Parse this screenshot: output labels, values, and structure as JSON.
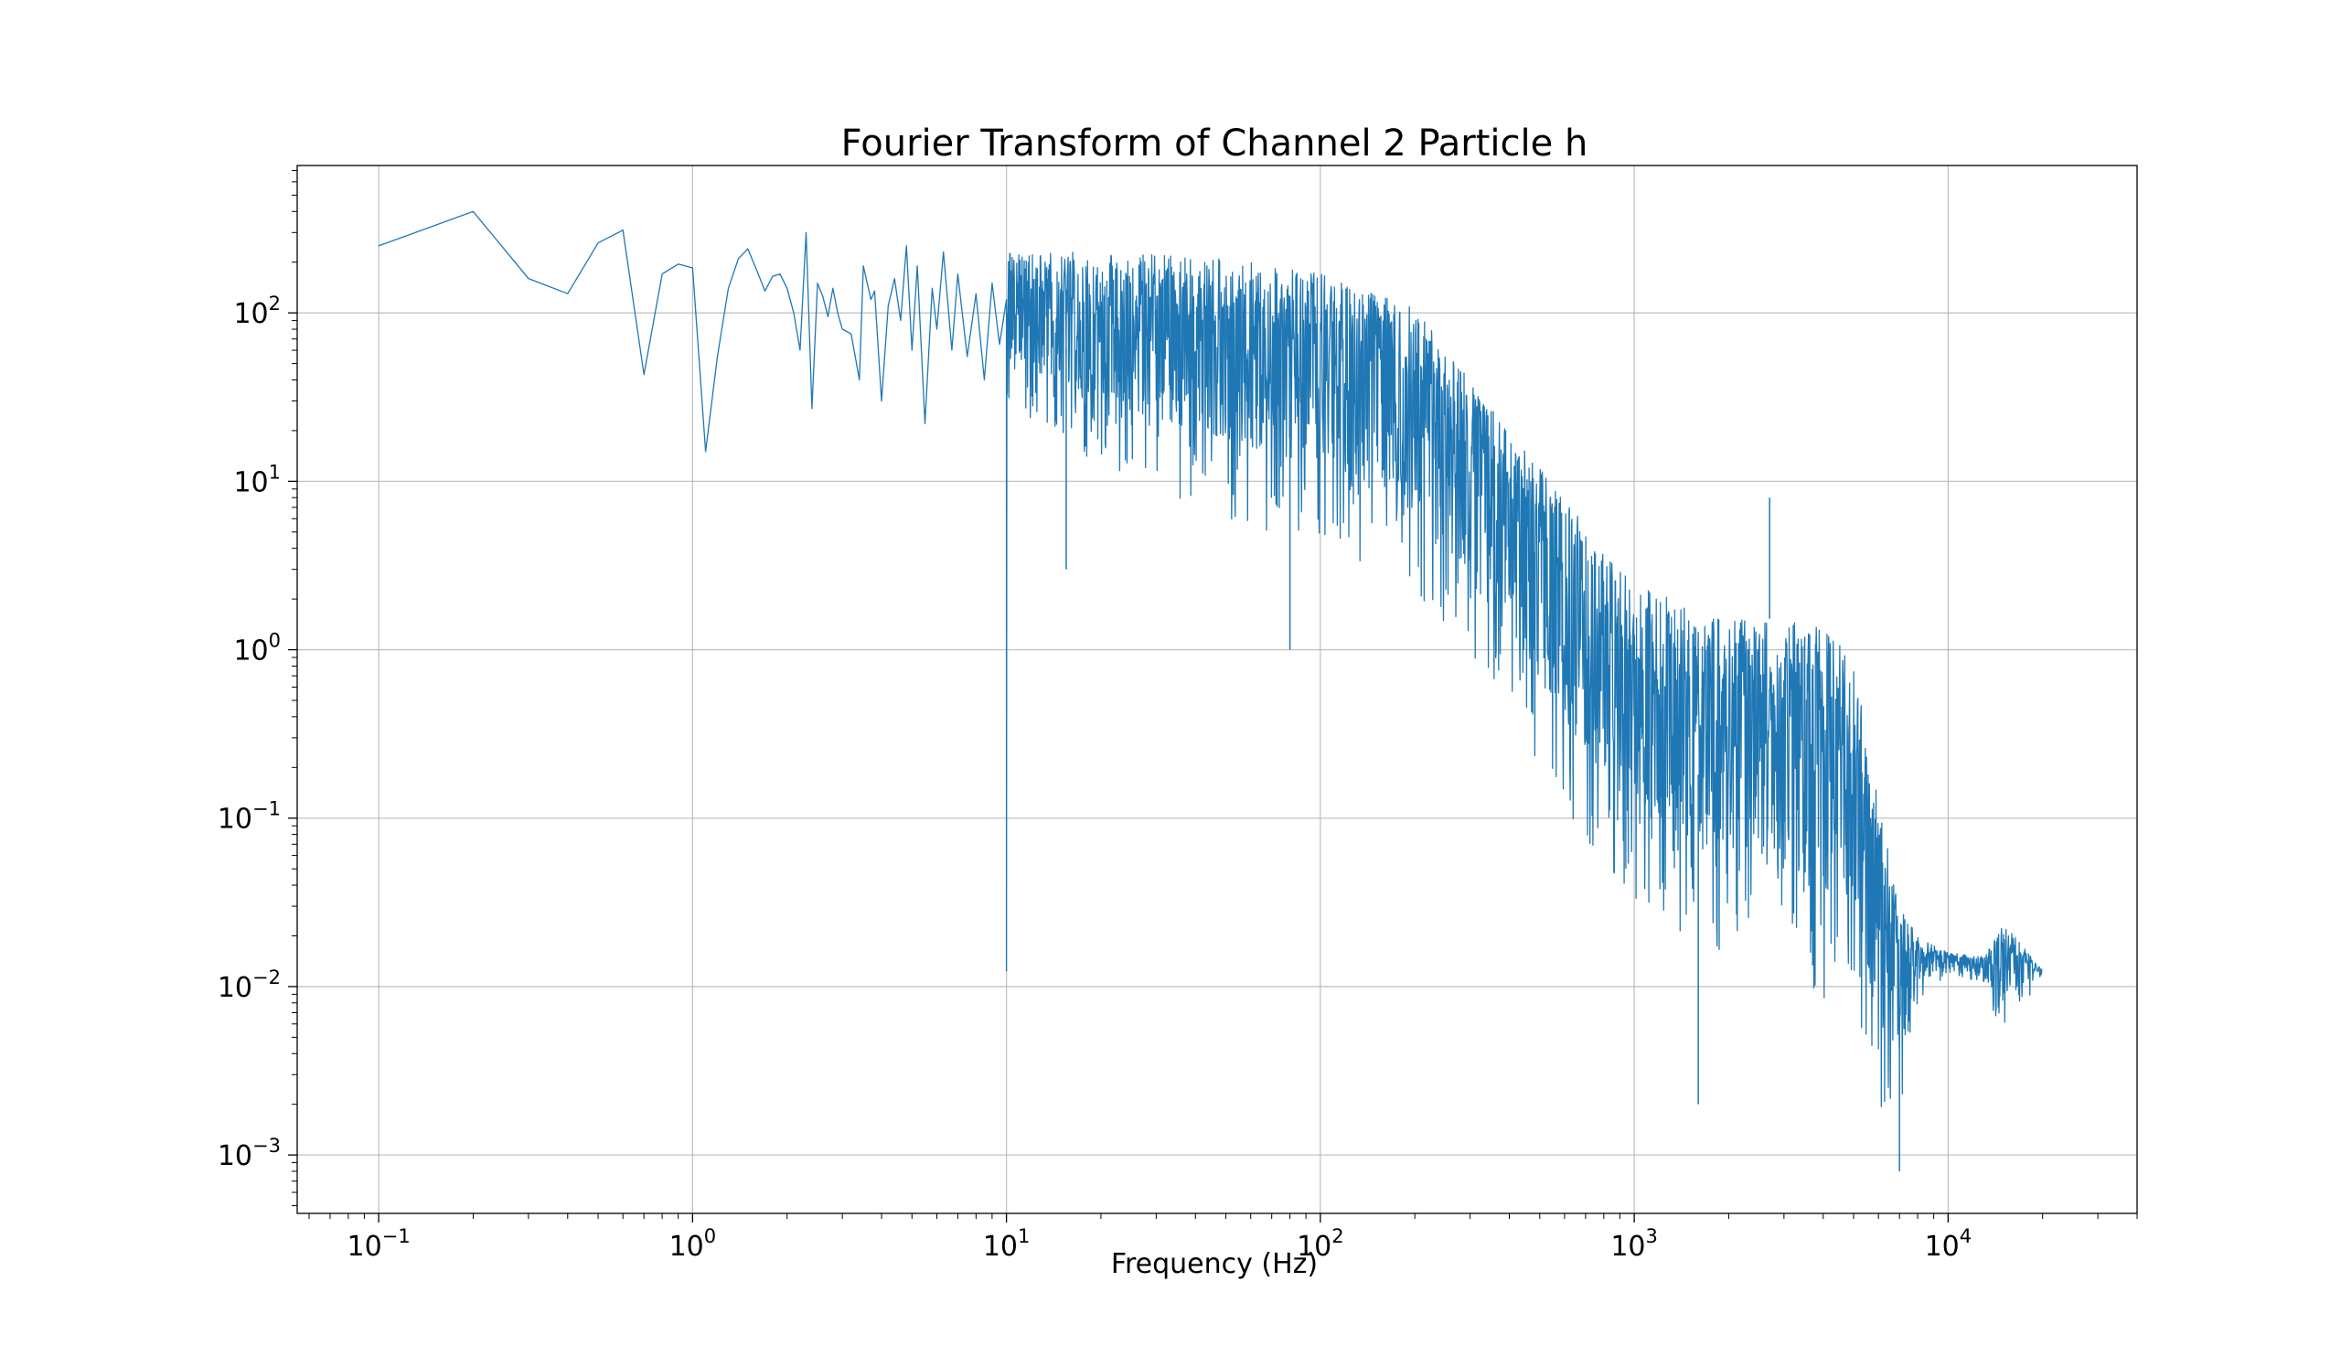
{
  "chart_data": {
    "type": "line",
    "title": "Fourier Transform of Channel 2 Particle h",
    "xlabel": "Frequency (Hz)",
    "ylabel": "",
    "x_scale": "log",
    "y_scale": "log",
    "xlim": [
      0.055,
      40000
    ],
    "ylim": [
      0.00045,
      750
    ],
    "grid": true,
    "legend": "none",
    "x_ticks": [
      {
        "base": "10",
        "exp": "−1",
        "value": 0.1
      },
      {
        "base": "10",
        "exp": "0",
        "value": 1
      },
      {
        "base": "10",
        "exp": "1",
        "value": 10
      },
      {
        "base": "10",
        "exp": "2",
        "value": 100
      },
      {
        "base": "10",
        "exp": "3",
        "value": 1000
      },
      {
        "base": "10",
        "exp": "4",
        "value": 10000
      }
    ],
    "y_ticks": [
      {
        "base": "10",
        "exp": "−3",
        "value": 0.001
      },
      {
        "base": "10",
        "exp": "−2",
        "value": 0.01
      },
      {
        "base": "10",
        "exp": "−1",
        "value": 0.1
      },
      {
        "base": "10",
        "exp": "0",
        "value": 1
      },
      {
        "base": "10",
        "exp": "1",
        "value": 10
      },
      {
        "base": "10",
        "exp": "2",
        "value": 100
      }
    ],
    "series": [
      {
        "color": "#1f77b4",
        "low_freq_points": [
          [
            0.1,
            250
          ],
          [
            0.2,
            400
          ],
          [
            0.3,
            160
          ],
          [
            0.4,
            130
          ],
          [
            0.5,
            260
          ],
          [
            0.6,
            310
          ],
          [
            0.7,
            43
          ],
          [
            0.8,
            170
          ],
          [
            0.9,
            195
          ],
          [
            1.0,
            185
          ],
          [
            1.1,
            15
          ],
          [
            1.2,
            55
          ],
          [
            1.3,
            140
          ],
          [
            1.4,
            210
          ],
          [
            1.5,
            240
          ],
          [
            1.6,
            180
          ],
          [
            1.7,
            135
          ],
          [
            1.8,
            165
          ],
          [
            1.9,
            170
          ],
          [
            2.0,
            140
          ],
          [
            2.1,
            100
          ],
          [
            2.2,
            60
          ],
          [
            2.3,
            300
          ],
          [
            2.4,
            27
          ],
          [
            2.5,
            150
          ],
          [
            2.6,
            125
          ],
          [
            2.7,
            95
          ],
          [
            2.8,
            140
          ],
          [
            2.9,
            100
          ],
          [
            3.0,
            80
          ],
          [
            3.2,
            75
          ],
          [
            3.4,
            40
          ],
          [
            3.5,
            190
          ],
          [
            3.7,
            120
          ],
          [
            3.8,
            135
          ],
          [
            4.0,
            30
          ],
          [
            4.2,
            110
          ],
          [
            4.4,
            160
          ],
          [
            4.6,
            90
          ],
          [
            4.8,
            250
          ],
          [
            5.0,
            60
          ],
          [
            5.2,
            190
          ],
          [
            5.5,
            22
          ],
          [
            5.8,
            140
          ],
          [
            6.0,
            80
          ],
          [
            6.3,
            230
          ],
          [
            6.7,
            60
          ],
          [
            7.0,
            170
          ],
          [
            7.5,
            55
          ],
          [
            8.0,
            130
          ],
          [
            8.5,
            40
          ],
          [
            9.0,
            150
          ],
          [
            9.5,
            65
          ],
          [
            10.0,
            120
          ]
        ],
        "envelope": [
          {
            "f": 10,
            "upper": 230,
            "lower": 30
          },
          {
            "f": 20,
            "upper": 230,
            "lower": 12
          },
          {
            "f": 50,
            "upper": 210,
            "lower": 6
          },
          {
            "f": 100,
            "upper": 170,
            "lower": 4
          },
          {
            "f": 200,
            "upper": 110,
            "lower": 2
          },
          {
            "f": 300,
            "upper": 40,
            "lower": 0.8
          },
          {
            "f": 500,
            "upper": 12,
            "lower": 0.2
          },
          {
            "f": 800,
            "upper": 4,
            "lower": 0.05
          },
          {
            "f": 1000,
            "upper": 2.5,
            "lower": 0.03
          },
          {
            "f": 1500,
            "upper": 1.8,
            "lower": 0.02
          },
          {
            "f": 2000,
            "upper": 1.6,
            "lower": 0.015
          },
          {
            "f": 3000,
            "upper": 1.5,
            "lower": 0.012
          },
          {
            "f": 4000,
            "upper": 1.4,
            "lower": 0.008
          },
          {
            "f": 5000,
            "upper": 0.9,
            "lower": 0.005
          },
          {
            "f": 6000,
            "upper": 0.12,
            "lower": 0.002
          },
          {
            "f": 7000,
            "upper": 0.03,
            "lower": 0.0015
          },
          {
            "f": 8000,
            "upper": 0.02,
            "lower": 0.008
          },
          {
            "f": 10000,
            "upper": 0.016,
            "lower": 0.012
          },
          {
            "f": 13000,
            "upper": 0.015,
            "lower": 0.01
          },
          {
            "f": 15000,
            "upper": 0.025,
            "lower": 0.005
          },
          {
            "f": 17000,
            "upper": 0.018,
            "lower": 0.007
          },
          {
            "f": 20000,
            "upper": 0.0125,
            "lower": 0.012
          }
        ],
        "spikes": [
          {
            "f": 15.5,
            "value": 3.0
          },
          {
            "f": 80,
            "value": 1.0
          },
          {
            "f": 1600,
            "value": 0.002
          },
          {
            "f": 7000,
            "value": 0.0008
          },
          {
            "f": 2700,
            "value": 8.0
          }
        ]
      }
    ]
  }
}
